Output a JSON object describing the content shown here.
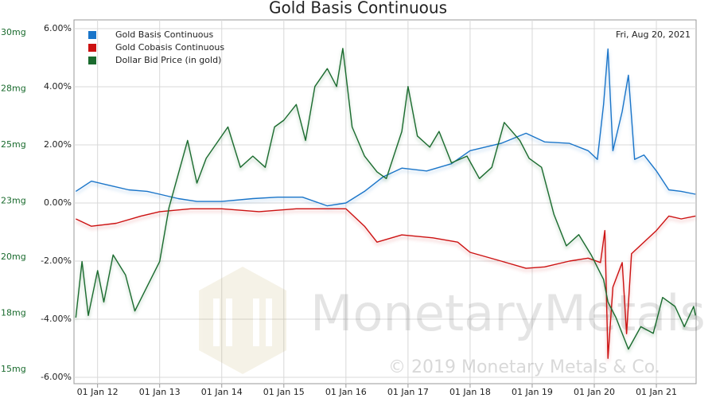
{
  "chart_data": {
    "type": "line",
    "title": "Gold Basis Continuous",
    "date_label": "Fri, Aug 20, 2021",
    "watermark": "MonetaryMetals",
    "copyright": "© 2019 Monetary Metals & Co.",
    "grid": true,
    "legend": "upper left",
    "xlim": [
      2011.62,
      2021.64
    ],
    "xticks": [
      {
        "value": 2012,
        "label": "01 Jan 12"
      },
      {
        "value": 2013,
        "label": "01 Jan 13"
      },
      {
        "value": 2014,
        "label": "01 Jan 14"
      },
      {
        "value": 2015,
        "label": "01 Jan 15"
      },
      {
        "value": 2016,
        "label": "01 Jan 16"
      },
      {
        "value": 2017,
        "label": "01 Jan 17"
      },
      {
        "value": 2018,
        "label": "01 Jan 18"
      },
      {
        "value": 2019,
        "label": "01 Jan 19"
      },
      {
        "value": 2020,
        "label": "01 Jan 20"
      },
      {
        "value": 2021,
        "label": "01 Jan 21"
      }
    ],
    "ylim": [
      -6.22,
      6.3
    ],
    "yticks": [
      {
        "value": 6,
        "label": "6.00%"
      },
      {
        "value": 4,
        "label": "4.00%"
      },
      {
        "value": 2,
        "label": "2.00%"
      },
      {
        "value": 0,
        "label": "0.00%"
      },
      {
        "value": -2,
        "label": "-2.00%"
      },
      {
        "value": -4,
        "label": "-4.00%"
      },
      {
        "value": -6,
        "label": "-6.00%"
      }
    ],
    "y2lim": [
      14.36,
      30.57
    ],
    "y2ticks": [
      {
        "value": 30,
        "label": "30mg"
      },
      {
        "value": 27.5,
        "label": "28mg"
      },
      {
        "value": 25,
        "label": "25mg"
      },
      {
        "value": 22.5,
        "label": "23mg"
      },
      {
        "value": 20,
        "label": "20mg"
      },
      {
        "value": 17.5,
        "label": "18mg"
      },
      {
        "value": 15,
        "label": "15mg"
      }
    ],
    "series": [
      {
        "name": "Gold Basis Continuous",
        "color": "#1a75c9",
        "axis": "y",
        "x": [
          2011.65,
          2011.9,
          2012.2,
          2012.5,
          2012.8,
          2013.0,
          2013.3,
          2013.6,
          2014.0,
          2014.5,
          2014.9,
          2015.3,
          2015.7,
          2016.0,
          2016.3,
          2016.6,
          2016.9,
          2017.3,
          2017.7,
          2018.0,
          2018.5,
          2018.9,
          2019.2,
          2019.6,
          2019.9,
          2020.05,
          2020.15,
          2020.22,
          2020.3,
          2020.45,
          2020.55,
          2020.65,
          2020.8,
          2021.0,
          2021.2,
          2021.4,
          2021.63
        ],
        "values": [
          0.4,
          0.75,
          0.6,
          0.45,
          0.4,
          0.3,
          0.15,
          0.05,
          0.05,
          0.15,
          0.2,
          0.2,
          -0.1,
          0,
          0.4,
          0.9,
          1.2,
          1.1,
          1.35,
          1.8,
          2.05,
          2.4,
          2.1,
          2.05,
          1.8,
          1.5,
          3.4,
          5.3,
          1.8,
          3.15,
          4.4,
          1.5,
          1.65,
          1.1,
          0.45,
          0.4,
          0.3
        ]
      },
      {
        "name": "Gold Cobasis Continuous",
        "color": "#cc1111",
        "axis": "y",
        "x": [
          2011.65,
          2011.9,
          2012.3,
          2012.7,
          2013.0,
          2013.5,
          2014.0,
          2014.6,
          2015.2,
          2015.7,
          2016.0,
          2016.3,
          2016.5,
          2016.9,
          2017.4,
          2017.8,
          2018.0,
          2018.5,
          2018.9,
          2019.2,
          2019.6,
          2019.9,
          2020.1,
          2020.17,
          2020.22,
          2020.3,
          2020.45,
          2020.52,
          2020.6,
          2020.8,
          2021.0,
          2021.2,
          2021.4,
          2021.63
        ],
        "values": [
          -0.55,
          -0.8,
          -0.7,
          -0.45,
          -0.3,
          -0.2,
          -0.2,
          -0.3,
          -0.2,
          -0.2,
          -0.2,
          -0.8,
          -1.35,
          -1.1,
          -1.2,
          -1.35,
          -1.7,
          -2.0,
          -2.25,
          -2.2,
          -2.0,
          -1.9,
          -2.05,
          -0.95,
          -5.35,
          -2.9,
          -2.05,
          -4.5,
          -1.75,
          -1.35,
          -0.95,
          -0.45,
          -0.55,
          -0.45
        ]
      },
      {
        "name": "Dollar Bid Price (in gold)",
        "color": "#1a6b2e",
        "axis": "y2",
        "x": [
          2011.65,
          2011.75,
          2011.85,
          2012.0,
          2012.1,
          2012.25,
          2012.45,
          2012.6,
          2012.8,
          2013.0,
          2013.15,
          2013.3,
          2013.45,
          2013.6,
          2013.75,
          2013.95,
          2014.1,
          2014.3,
          2014.5,
          2014.7,
          2014.85,
          2015.0,
          2015.2,
          2015.35,
          2015.5,
          2015.7,
          2015.85,
          2015.95,
          2016.1,
          2016.3,
          2016.5,
          2016.65,
          2016.9,
          2017.0,
          2017.15,
          2017.35,
          2017.5,
          2017.7,
          2017.95,
          2018.15,
          2018.35,
          2018.55,
          2018.8,
          2018.95,
          2019.15,
          2019.35,
          2019.55,
          2019.75,
          2019.95,
          2020.15,
          2020.22,
          2020.35,
          2020.55,
          2020.75,
          2020.95,
          2021.1,
          2021.3,
          2021.45,
          2021.6,
          2021.63
        ],
        "values": [
          17.3,
          19.8,
          17.4,
          19.4,
          18.0,
          20.1,
          19.2,
          17.6,
          18.7,
          19.8,
          22.2,
          23.7,
          25.2,
          23.3,
          24.4,
          25.2,
          25.8,
          24.0,
          24.5,
          24.0,
          25.8,
          26.1,
          26.8,
          25.2,
          27.6,
          28.4,
          27.6,
          29.3,
          25.8,
          24.5,
          23.8,
          23.5,
          25.6,
          27.6,
          25.4,
          24.9,
          25.6,
          24.2,
          24.5,
          23.5,
          24.0,
          26.0,
          25.2,
          24.4,
          24.0,
          21.9,
          20.5,
          21.0,
          20.1,
          19.0,
          18.0,
          17.3,
          15.9,
          16.9,
          16.6,
          18.2,
          17.8,
          16.9,
          17.8,
          17.4
        ]
      }
    ]
  }
}
